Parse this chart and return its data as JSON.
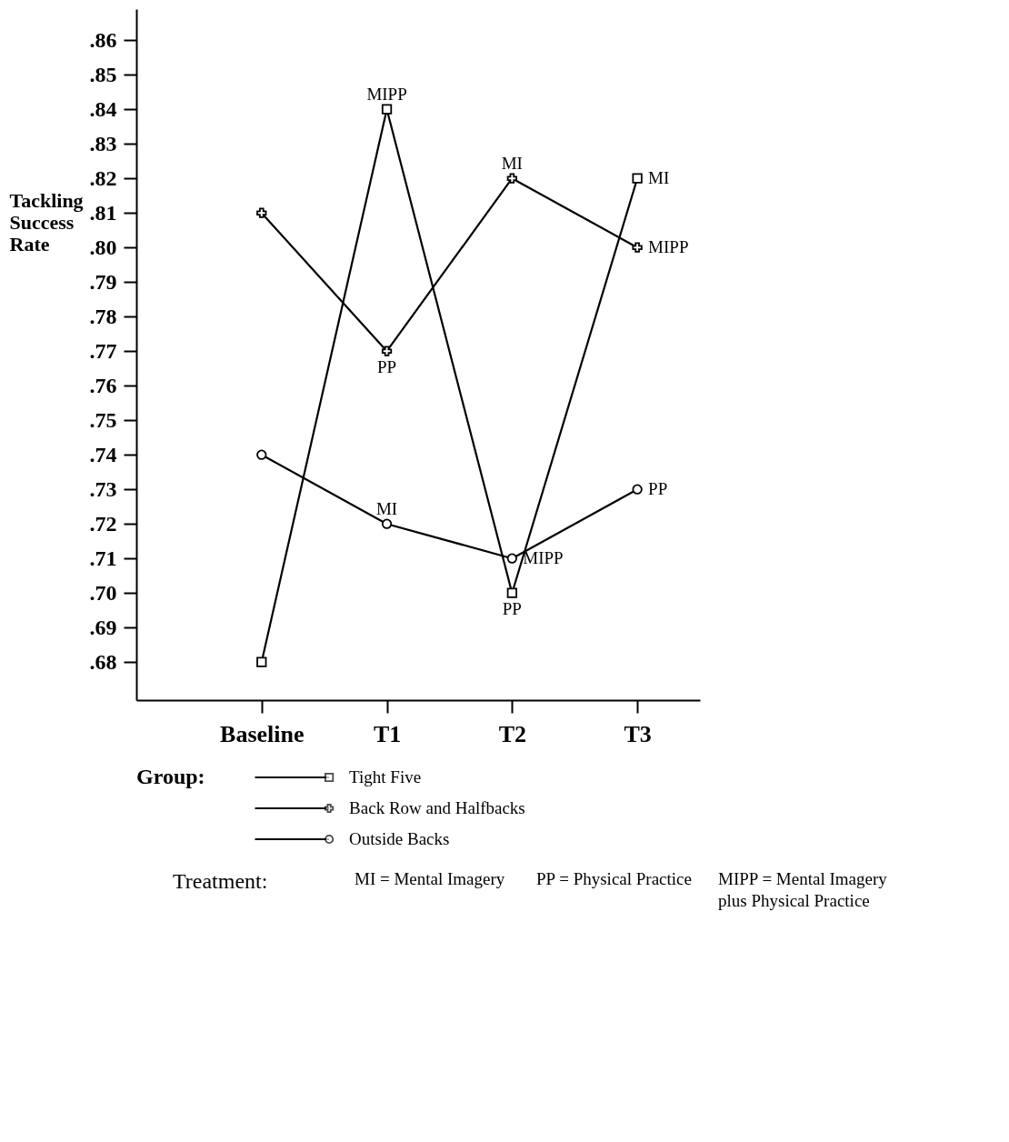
{
  "chart_data": {
    "type": "line",
    "ylabel": "Tackling Success Rate",
    "legend_title": "Group:",
    "legend": "bottom",
    "grid": false,
    "categories": [
      "Baseline",
      "T1",
      "T2",
      "T3"
    ],
    "ylim": [
      0.669,
      0.869
    ],
    "yticks": [
      {
        "value": 0.68,
        "label": ".68"
      },
      {
        "value": 0.69,
        "label": ".69"
      },
      {
        "value": 0.7,
        "label": ".70"
      },
      {
        "value": 0.71,
        "label": ".71"
      },
      {
        "value": 0.72,
        "label": ".72"
      },
      {
        "value": 0.73,
        "label": ".73"
      },
      {
        "value": 0.74,
        "label": ".74"
      },
      {
        "value": 0.75,
        "label": ".75"
      },
      {
        "value": 0.76,
        "label": ".76"
      },
      {
        "value": 0.77,
        "label": ".77"
      },
      {
        "value": 0.78,
        "label": ".78"
      },
      {
        "value": 0.79,
        "label": ".79"
      },
      {
        "value": 0.8,
        "label": ".80"
      },
      {
        "value": 0.81,
        "label": ".81"
      },
      {
        "value": 0.82,
        "label": ".82"
      },
      {
        "value": 0.83,
        "label": ".83"
      },
      {
        "value": 0.84,
        "label": ".84"
      },
      {
        "value": 0.85,
        "label": ".85"
      },
      {
        "value": 0.86,
        "label": ".86"
      }
    ],
    "series": [
      {
        "name": "Tight Five",
        "color": "#000000",
        "marker": "square",
        "values": [
          0.68,
          0.84,
          0.7,
          0.82
        ]
      },
      {
        "name": "Back Row and Halfbacks",
        "color": "#000000",
        "marker": "cross",
        "values": [
          0.81,
          0.77,
          0.82,
          0.8
        ]
      },
      {
        "name": "Outside Backs",
        "color": "#000000",
        "marker": "circle",
        "values": [
          0.74,
          0.72,
          0.71,
          0.73
        ]
      }
    ],
    "annotations": [
      {
        "text": "MIPP",
        "x": "T1",
        "y": 0.84
      },
      {
        "text": "PP",
        "x": "T1",
        "y": 0.77
      },
      {
        "text": "MI",
        "x": "T1",
        "y": 0.72
      },
      {
        "text": "MI",
        "x": "T2",
        "y": 0.82
      },
      {
        "text": "MIPP",
        "x": "T2",
        "y": 0.71
      },
      {
        "text": "PP",
        "x": "T2",
        "y": 0.7
      },
      {
        "text": "MI",
        "x": "T3",
        "y": 0.82
      },
      {
        "text": "MIPP",
        "x": "T3",
        "y": 0.8
      },
      {
        "text": "PP",
        "x": "T3",
        "y": 0.73
      },
      "Treatment:",
      "MI = Mental Imagery",
      "PP = Physical Practice",
      "MIPP = Mental Imagery plus Physical Practice"
    ]
  }
}
